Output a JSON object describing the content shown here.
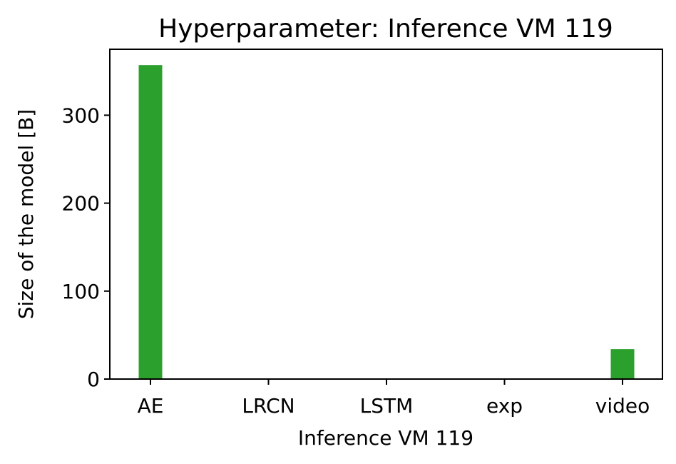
{
  "chart_data": {
    "type": "bar",
    "title": "Hyperparameter: Inference VM 119",
    "xlabel": "Inference VM 119",
    "ylabel": "Size of the model [B]",
    "categories": [
      "AE",
      "LRCN",
      "LSTM",
      "exp",
      "video"
    ],
    "values": [
      357,
      0,
      0,
      0,
      34
    ],
    "ylim": [
      0,
      375
    ],
    "yticks": [
      0,
      100,
      200,
      300
    ],
    "grid": false,
    "bar_color": "#2ca02c"
  }
}
